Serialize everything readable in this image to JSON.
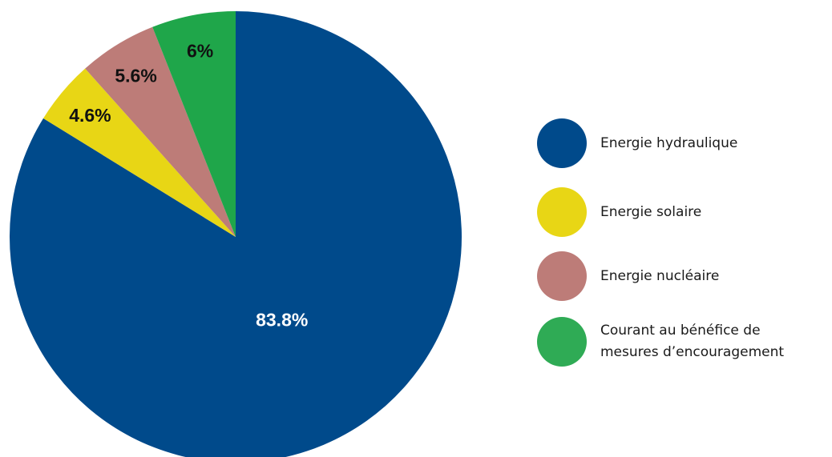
{
  "chart_data": {
    "type": "pie",
    "start_angle_deg": 0,
    "direction": "clockwise",
    "slices": [
      {
        "label": "Energie hydraulique",
        "value": 83.8,
        "display": "83.8%",
        "color": "#004a8b",
        "label_color": "#ffffff"
      },
      {
        "label": "Energie solaire",
        "value": 4.6,
        "display": "4.6%",
        "color": "#e8d615",
        "label_color": "#111111"
      },
      {
        "label": "Energie nucléaire",
        "value": 5.6,
        "display": "5.6%",
        "color": "#bd7c78",
        "label_color": "#111111"
      },
      {
        "label": "Courant au bénéfice de\nmesures d’encouragement",
        "value": 6,
        "display": "6%",
        "color": "#1fa64a",
        "label_color": "#111111"
      }
    ],
    "legend_position": "right"
  },
  "legend": {
    "items": [
      {
        "label": "Energie hydraulique",
        "color": "#004a8b"
      },
      {
        "label": "Energie solaire",
        "color": "#e8d615"
      },
      {
        "label": "Energie nucléaire",
        "color": "#bd7c78"
      },
      {
        "label": "Courant au bénéfice de\nmesures d’encouragement",
        "color": "#2fab55"
      }
    ]
  }
}
